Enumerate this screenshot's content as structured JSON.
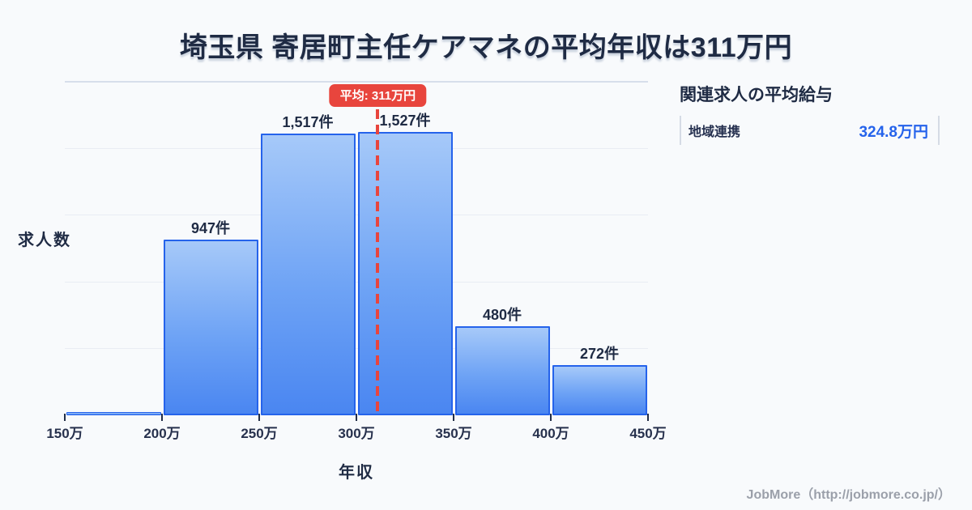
{
  "title": "埼玉県 寄居町主任ケアマネの平均年収は311万円",
  "chart_data": {
    "type": "bar",
    "title": "埼玉県 寄居町主任ケアマネの平均年収は311万円",
    "xlabel": "年収",
    "ylabel": "求人数",
    "xlim": [
      150,
      450
    ],
    "ylim": [
      0,
      1800
    ],
    "grid": true,
    "tick_labels": [
      "150万",
      "200万",
      "250万",
      "300万",
      "350万",
      "400万",
      "450万"
    ],
    "bins": [
      {
        "range_start": 150,
        "range_end": 200,
        "value": 0,
        "label": ""
      },
      {
        "range_start": 200,
        "range_end": 250,
        "value": 947,
        "label": "947件"
      },
      {
        "range_start": 250,
        "range_end": 300,
        "value": 1517,
        "label": "1,517件"
      },
      {
        "range_start": 300,
        "range_end": 350,
        "value": 1527,
        "label": "1,527件"
      },
      {
        "range_start": 350,
        "range_end": 400,
        "value": 480,
        "label": "480件"
      },
      {
        "range_start": 400,
        "range_end": 450,
        "value": 272,
        "label": "272件"
      }
    ],
    "average": {
      "value": 311,
      "label": "平均: 311万円"
    }
  },
  "side_panel": {
    "heading": "関連求人の平均給与",
    "rows": [
      {
        "label": "地域連携",
        "value": "324.8万円"
      }
    ]
  },
  "footer": {
    "credit": "JobMore（http://jobmore.co.jp/）"
  },
  "colors": {
    "background": "#f8fafc",
    "text_dark": "#1f2b44",
    "bar_border": "#2563eb",
    "bar_gradient_top": "#a6c9f9",
    "bar_gradient_bottom": "#4a86f1",
    "average_red": "#e8453d",
    "value_blue": "#2563eb",
    "grid_line": "#e9edf4",
    "footer_gray": "#9ba0aa"
  }
}
